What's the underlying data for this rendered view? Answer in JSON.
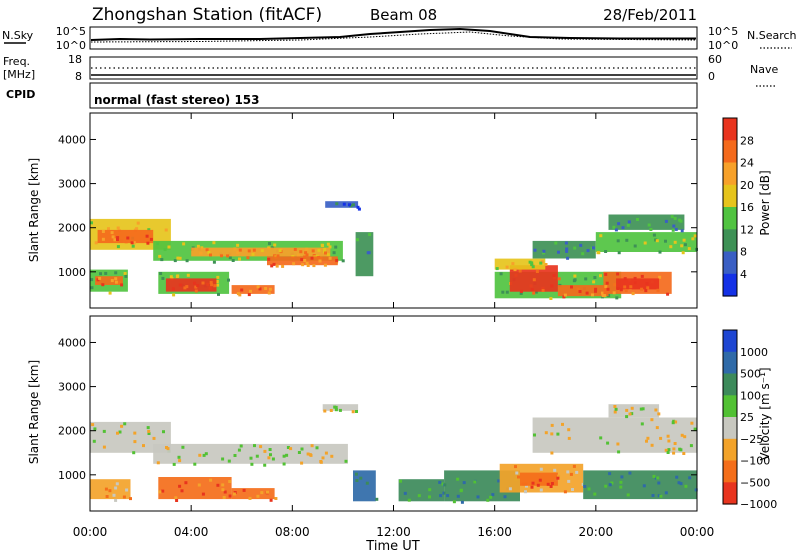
{
  "header": {
    "station": "Zhongshan Station (fitACF)",
    "beam": "Beam 08",
    "date": "28/Feb/2011"
  },
  "noise_panel": {
    "left_label": "N.Sky",
    "right_label": "N.Search",
    "left_ticks": [
      "10^5",
      "10^0"
    ],
    "right_ticks": [
      "10^5",
      "10^0"
    ]
  },
  "freq_panel": {
    "left_label_1": "Freq.",
    "left_label_2": "[MHz]",
    "right_label": "Nave",
    "left_ticks": [
      "18",
      "8"
    ],
    "right_ticks": [
      "60",
      "0"
    ]
  },
  "cpid_panel": {
    "label": "CPID",
    "mode_text": "normal (fast stereo) 153"
  },
  "chart_data": [
    {
      "type": "heatmap",
      "name": "Power",
      "ylabel": "Slant Range [km]",
      "xlabel": "Time UT",
      "yticks": [
        1000,
        2000,
        3000,
        4000
      ],
      "ylim": [
        180,
        4600
      ],
      "xticks": [
        "00:00",
        "04:00",
        "08:00",
        "12:00",
        "16:00",
        "20:00",
        "00:00"
      ],
      "colorbar": {
        "label": "Power [dB]",
        "ticks": [
          "4",
          "8",
          "12",
          "16",
          "20",
          "24",
          "28"
        ],
        "colors": [
          "#1431e6",
          "#3a5fc4",
          "#3e9156",
          "#50c340",
          "#e6c41c",
          "#f7a12a",
          "#f46a1c",
          "#e8341e"
        ]
      },
      "regions": [
        {
          "t0": 0.0,
          "t1": 3.2,
          "r0": 1500,
          "r1": 2200,
          "level": 4
        },
        {
          "t0": 0.3,
          "t1": 2.5,
          "r0": 1650,
          "r1": 1950,
          "level": 6
        },
        {
          "t0": 0.0,
          "t1": 1.5,
          "r0": 550,
          "r1": 1050,
          "level": 3
        },
        {
          "t0": 0.2,
          "t1": 1.3,
          "r0": 700,
          "r1": 900,
          "level": 6
        },
        {
          "t0": 2.5,
          "t1": 10.0,
          "r0": 1250,
          "r1": 1700,
          "level": 3
        },
        {
          "t0": 4.0,
          "t1": 9.5,
          "r0": 1350,
          "r1": 1550,
          "level": 5
        },
        {
          "t0": 7.0,
          "t1": 9.8,
          "r0": 1150,
          "r1": 1350,
          "level": 6
        },
        {
          "t0": 2.7,
          "t1": 5.5,
          "r0": 500,
          "r1": 1000,
          "level": 3
        },
        {
          "t0": 3.0,
          "t1": 5.0,
          "r0": 550,
          "r1": 850,
          "level": 7
        },
        {
          "t0": 5.6,
          "t1": 7.3,
          "r0": 500,
          "r1": 700,
          "level": 6
        },
        {
          "t0": 9.3,
          "t1": 10.6,
          "r0": 2450,
          "r1": 2600,
          "level": 1
        },
        {
          "t0": 10.5,
          "t1": 11.2,
          "r0": 900,
          "r1": 1900,
          "level": 2
        },
        {
          "t0": 16.0,
          "t1": 21.0,
          "r0": 400,
          "r1": 1000,
          "level": 3
        },
        {
          "t0": 16.6,
          "t1": 18.5,
          "r0": 550,
          "r1": 1150,
          "level": 7
        },
        {
          "t0": 18.5,
          "t1": 20.5,
          "r0": 450,
          "r1": 700,
          "level": 6
        },
        {
          "t0": 20.3,
          "t1": 23.0,
          "r0": 500,
          "r1": 1000,
          "level": 6
        },
        {
          "t0": 20.8,
          "t1": 22.5,
          "r0": 600,
          "r1": 850,
          "level": 7
        },
        {
          "t0": 17.5,
          "t1": 20.0,
          "r0": 1300,
          "r1": 1700,
          "level": 2
        },
        {
          "t0": 20.0,
          "t1": 24.0,
          "r0": 1450,
          "r1": 1900,
          "level": 3
        },
        {
          "t0": 20.5,
          "t1": 23.5,
          "r0": 1950,
          "r1": 2300,
          "level": 2
        },
        {
          "t0": 16.0,
          "t1": 18.0,
          "r0": 1050,
          "r1": 1300,
          "level": 4
        }
      ]
    },
    {
      "type": "heatmap",
      "name": "Velocity",
      "ylabel": "Slant Range [km]",
      "xlabel": "Time UT",
      "yticks": [
        1000,
        2000,
        3000,
        4000
      ],
      "ylim": [
        180,
        4600
      ],
      "xticks": [
        "00:00",
        "04:00",
        "08:00",
        "12:00",
        "16:00",
        "20:00",
        "00:00"
      ],
      "colorbar": {
        "label": "Velocity [m s⁻¹]",
        "ticks": [
          "1000",
          "500",
          "100",
          "25",
          "−25",
          "−100",
          "−500",
          "−1000"
        ],
        "colors": [
          "#1e46d2",
          "#2f6aa8",
          "#3c8a5a",
          "#52c134",
          "#c8c8c0",
          "#f3a32a",
          "#f46e1a",
          "#e8341e"
        ]
      },
      "regions": [
        {
          "t0": 0.0,
          "t1": 3.2,
          "r0": 1500,
          "r1": 2200,
          "level": 4
        },
        {
          "t0": 2.5,
          "t1": 10.2,
          "r0": 1250,
          "r1": 1700,
          "level": 4
        },
        {
          "t0": 0.0,
          "t1": 1.6,
          "r0": 450,
          "r1": 900,
          "level": 5
        },
        {
          "t0": 2.7,
          "t1": 5.6,
          "r0": 450,
          "r1": 950,
          "level": 6
        },
        {
          "t0": 5.6,
          "t1": 7.3,
          "r0": 450,
          "r1": 700,
          "level": 6
        },
        {
          "t0": 9.2,
          "t1": 10.6,
          "r0": 2450,
          "r1": 2600,
          "level": 4
        },
        {
          "t0": 10.4,
          "t1": 11.3,
          "r0": 400,
          "r1": 1100,
          "level": 1
        },
        {
          "t0": 12.2,
          "t1": 14.0,
          "r0": 400,
          "r1": 900,
          "level": 2
        },
        {
          "t0": 14.0,
          "t1": 17.0,
          "r0": 400,
          "r1": 1100,
          "level": 2
        },
        {
          "t0": 16.2,
          "t1": 19.5,
          "r0": 600,
          "r1": 1250,
          "level": 5
        },
        {
          "t0": 17.0,
          "t1": 18.5,
          "r0": 750,
          "r1": 1050,
          "level": 6
        },
        {
          "t0": 19.5,
          "t1": 24.0,
          "r0": 450,
          "r1": 1100,
          "level": 2
        },
        {
          "t0": 17.5,
          "t1": 24.0,
          "r0": 1500,
          "r1": 2300,
          "level": 4
        },
        {
          "t0": 20.5,
          "t1": 22.5,
          "r0": 2300,
          "r1": 2600,
          "level": 4
        }
      ]
    }
  ]
}
